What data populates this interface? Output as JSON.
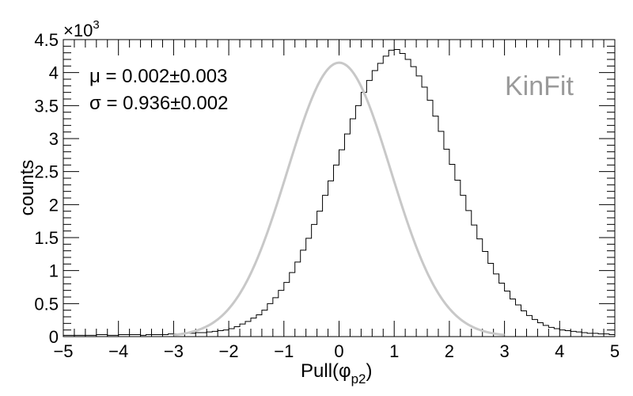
{
  "chart_data": {
    "type": "histogram",
    "xlabel": "Pull(φ",
    "xlabel_sub": "p2",
    "xlabel_close": ")",
    "ylabel": "counts",
    "y_multiplier": "×10",
    "y_multiplier_exp": "3",
    "xlim": [
      -5,
      5
    ],
    "ylim": [
      0,
      4.5
    ],
    "x_ticks": [
      "−5",
      "−4",
      "−3",
      "−2",
      "−1",
      "0",
      "1",
      "2",
      "3",
      "4",
      "5"
    ],
    "y_ticks": [
      "0",
      "0.5",
      "1",
      "1.5",
      "2",
      "2.5",
      "3",
      "3.5",
      "4",
      "4.5"
    ],
    "annotation_mu": "μ = 0.002±0.003",
    "annotation_sigma": "σ = 0.936±0.002",
    "label_tag": "KinFit",
    "bin_width": 0.1,
    "bin_start": -5.0,
    "bin_values": [
      0.02,
      0.02,
      0.02,
      0.02,
      0.02,
      0.02,
      0.03,
      0.03,
      0.02,
      0.02,
      0.03,
      0.03,
      0.03,
      0.03,
      0.02,
      0.03,
      0.03,
      0.03,
      0.03,
      0.04,
      0.04,
      0.04,
      0.05,
      0.05,
      0.06,
      0.06,
      0.07,
      0.08,
      0.09,
      0.1,
      0.12,
      0.15,
      0.19,
      0.23,
      0.28,
      0.33,
      0.4,
      0.5,
      0.59,
      0.7,
      0.82,
      0.97,
      1.13,
      1.31,
      1.49,
      1.7,
      1.9,
      2.14,
      2.36,
      2.6,
      2.83,
      3.07,
      3.3,
      3.5,
      3.7,
      3.88,
      4.03,
      4.14,
      4.25,
      4.34,
      4.35,
      4.29,
      4.2,
      4.09,
      3.95,
      3.78,
      3.58,
      3.34,
      3.11,
      2.84,
      2.61,
      2.37,
      2.14,
      1.91,
      1.69,
      1.48,
      1.29,
      1.11,
      0.95,
      0.81,
      0.69,
      0.57,
      0.48,
      0.39,
      0.32,
      0.26,
      0.21,
      0.17,
      0.14,
      0.12,
      0.1,
      0.09,
      0.08,
      0.07,
      0.06,
      0.05,
      0.05,
      0.04,
      0.04,
      0.03
    ],
    "fit": {
      "type": "gaussian",
      "mean": 0.002,
      "sigma": 0.936,
      "amplitude": 4.15,
      "range": [
        -3.0,
        3.0
      ]
    },
    "colors": {
      "histogram": "#000000",
      "fit": "#c8c8c8",
      "tag": "#9a9a9a"
    }
  }
}
